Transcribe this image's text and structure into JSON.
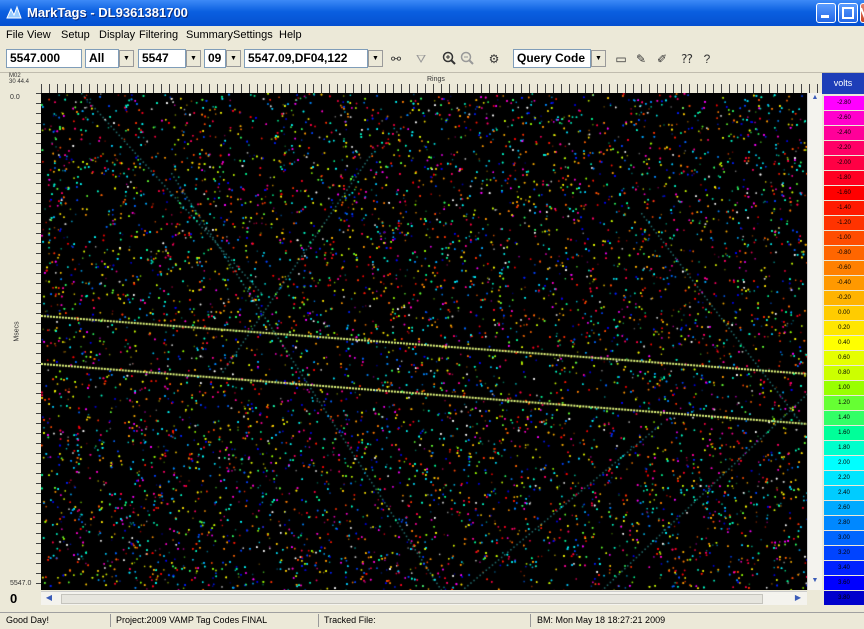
{
  "window": {
    "title": "MarkTags - DL9361381700"
  },
  "menu": [
    "File",
    "View",
    "Setup",
    "Display",
    "Filtering",
    "Summary",
    "Settings",
    "Help"
  ],
  "toolbar": {
    "position_value": "5547.000",
    "filter_value": "All",
    "line_value": "5547",
    "segment_value": "09",
    "code_value": "5547.09,DF04,122",
    "query_label": "Query Code"
  },
  "plot": {
    "x_label": "Rings",
    "y_label": "Msecs",
    "y_top_label": "0.0",
    "y_bottom_label": "5547.0",
    "corner_top": "M02",
    "corner_bottom": "30 44.4",
    "scroll_position": "0"
  },
  "scale": {
    "header": "volts",
    "labels": [
      "-2.80",
      "-2.60",
      "-2.40",
      "-2.20",
      "-2.00",
      "-1.80",
      "-1.60",
      "-1.40",
      "-1.20",
      "-1.00",
      "-0.80",
      "-0.60",
      "-0.40",
      "-0.20",
      "0.00",
      "0.20",
      "0.40",
      "0.60",
      "0.80",
      "1.00",
      "1.20",
      "1.40",
      "1.60",
      "1.80",
      "2.00",
      "2.20",
      "2.40",
      "2.60",
      "2.80",
      "3.00",
      "3.20",
      "3.40",
      "3.60",
      "3.80"
    ],
    "colors": [
      "#ff00ff",
      "#ff00cc",
      "#ff0099",
      "#ff0066",
      "#ff0044",
      "#ff0022",
      "#ff0000",
      "#ff1a00",
      "#ff3300",
      "#ff4d00",
      "#ff6600",
      "#ff8000",
      "#ff9900",
      "#ffb300",
      "#ffcc00",
      "#ffe600",
      "#ffff00",
      "#e6ff00",
      "#ccff00",
      "#99ff00",
      "#66ff33",
      "#33ff66",
      "#00ff99",
      "#00ffcc",
      "#00ffff",
      "#00e6ff",
      "#00ccff",
      "#00aaff",
      "#0088ff",
      "#0066ff",
      "#0044ff",
      "#0022ff",
      "#0000ff",
      "#0000cc"
    ]
  },
  "status": {
    "message": "Good Day!",
    "project": "Project:2009 VAMP Tag Codes FINAL",
    "tracked": "Tracked File:",
    "bm": "BM: Mon May 18 18:27:21 2009"
  }
}
